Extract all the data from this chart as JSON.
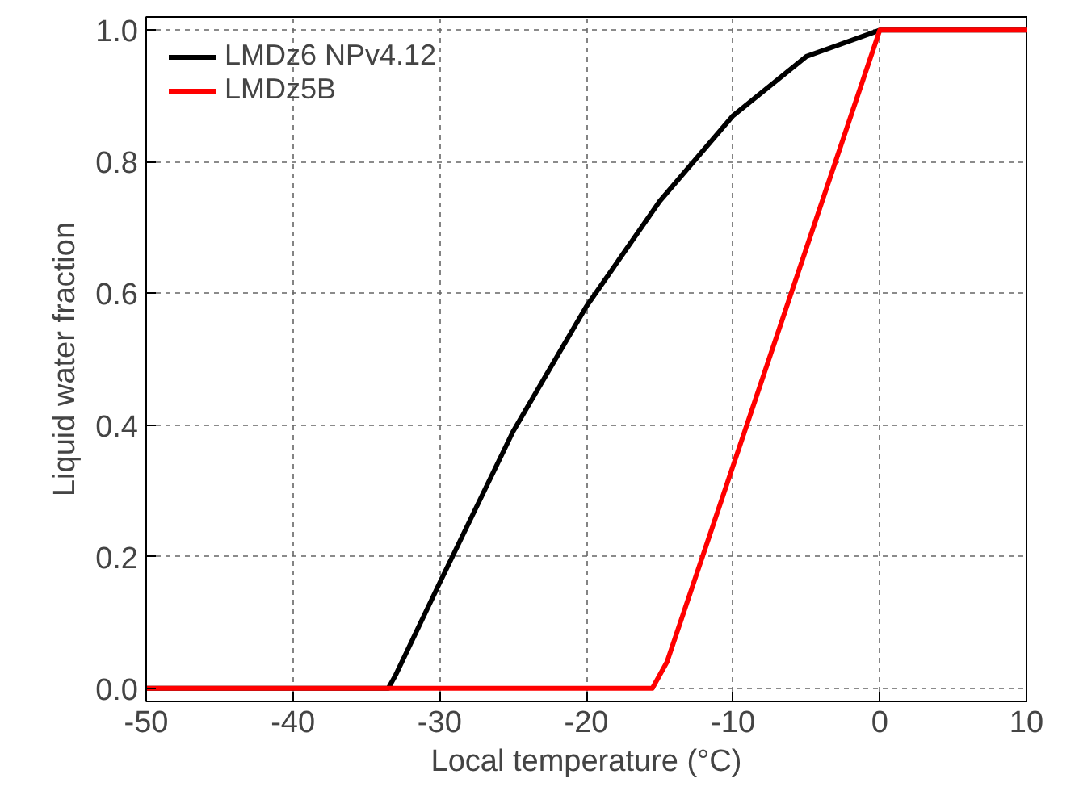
{
  "chart_data": {
    "type": "line",
    "xlabel": "Local temperature (°C)",
    "ylabel": "Liquid water fraction",
    "xlim": [
      -50,
      10
    ],
    "xticks": [
      -50,
      -40,
      -30,
      -20,
      -10,
      0,
      10
    ],
    "ylim": [
      -0.02,
      1.02
    ],
    "yticks": [
      {
        "value": 0,
        "label": "0.0"
      },
      0.2,
      0.4,
      0.6,
      0.8,
      {
        "value": 1,
        "label": "1.0"
      }
    ],
    "grid": true,
    "legend": "top left",
    "line_style": "solid",
    "series": [
      {
        "name": "LMDz6 NPv4.12",
        "color": "#000000",
        "x": [
          -50,
          -34,
          -33.5,
          -33,
          -30,
          -25,
          -20,
          -15,
          -10,
          -5,
          0,
          10
        ],
        "values": [
          0,
          0,
          0,
          0.02,
          0.16,
          0.39,
          0.58,
          0.74,
          0.87,
          0.96,
          1.0,
          1.0
        ]
      },
      {
        "name": "LMDz5B",
        "color": "#ff0000",
        "x": [
          -50,
          -15.5,
          -14.5,
          0,
          10
        ],
        "values": [
          0,
          0,
          0.04,
          1.0,
          1.0
        ]
      }
    ]
  }
}
